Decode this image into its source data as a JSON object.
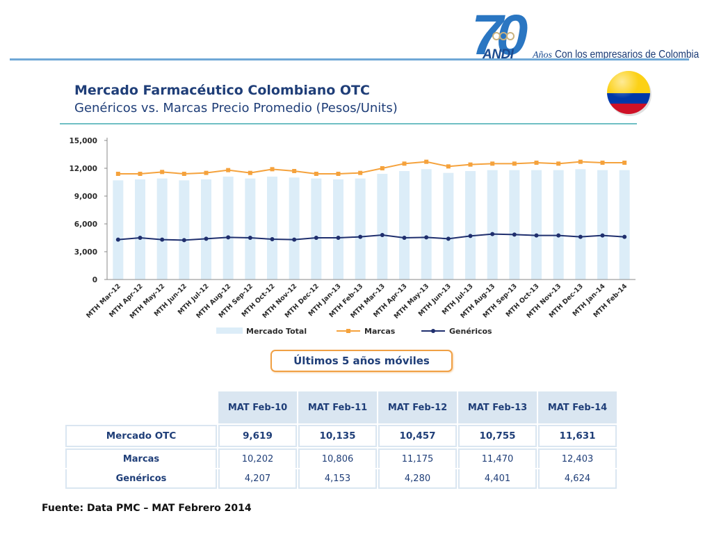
{
  "header": {
    "logo_number": "70",
    "logo_brand": "ANDI",
    "logo_anos": "Años",
    "tagline": "Con los empresarios de Colombia"
  },
  "title": {
    "line1": "Mercado Farmacéutico Colombiano OTC",
    "line2": "Genéricos vs. Marcas Precio Promedio (Pesos/Units)"
  },
  "colors": {
    "brand": "#1a4a8f",
    "title": "#1f3e78",
    "bar": "#dcedf8",
    "marcas": "#f5a23c",
    "genericos": "#1f2f6e",
    "header_cell": "#dae6f1",
    "callout_border": "#f0a045"
  },
  "chart_data": {
    "type": "bar",
    "title": "",
    "xlabel": "",
    "ylabel": "",
    "ylim": [
      0,
      15000
    ],
    "y_ticks": [
      "15,000",
      "12,000",
      "9,000",
      "6,000",
      "3,000",
      "0"
    ],
    "grid": false,
    "legend_position": "bottom",
    "categories": [
      "MTH Mar-12",
      "MTH Apr-12",
      "MTH May-12",
      "MTH Jun-12",
      "MTH Jul-12",
      "MTH Aug-12",
      "MTH Sep-12",
      "MTH Oct-12",
      "MTH Nov-12",
      "MTH Dec-12",
      "MTH Jan-13",
      "MTH Feb-13",
      "MTH Mar-13",
      "MTH Apr-13",
      "MTH May-13",
      "MTH Jun-13",
      "MTH Jul-13",
      "MTH Aug-13",
      "MTH Sep-13",
      "MTH Oct-13",
      "MTH Nov-13",
      "MTH Dec-13",
      "MTH Jan-14",
      "MTH Feb-14"
    ],
    "series": [
      {
        "name": "Mercado Total",
        "kind": "bar",
        "color": "#dcedf8",
        "values": [
          10700,
          10800,
          10900,
          10700,
          10800,
          11100,
          10900,
          11100,
          11000,
          10900,
          10800,
          10900,
          11400,
          11700,
          11900,
          11500,
          11700,
          11800,
          11800,
          11800,
          11800,
          11900,
          11800,
          11800
        ]
      },
      {
        "name": "Marcas",
        "kind": "line",
        "color": "#f5a23c",
        "marker": "square",
        "values": [
          11400,
          11400,
          11600,
          11400,
          11500,
          11800,
          11500,
          11900,
          11700,
          11400,
          11400,
          11500,
          12000,
          12500,
          12700,
          12200,
          12400,
          12500,
          12500,
          12600,
          12500,
          12700,
          12600,
          12600
        ]
      },
      {
        "name": "Genéricos",
        "kind": "line",
        "color": "#1f2f6e",
        "marker": "circle",
        "values": [
          4300,
          4500,
          4300,
          4250,
          4400,
          4550,
          4500,
          4350,
          4300,
          4500,
          4500,
          4600,
          4800,
          4500,
          4550,
          4400,
          4700,
          4900,
          4850,
          4750,
          4750,
          4600,
          4750,
          4600
        ]
      }
    ]
  },
  "callout": "Últimos 5 años móviles",
  "table": {
    "columns": [
      "MAT Feb-10",
      "MAT Feb-11",
      "MAT Feb-12",
      "MAT Feb-13",
      "MAT Feb-14"
    ],
    "rows": [
      {
        "label": "Mercado OTC",
        "values": [
          "9,619",
          "10,135",
          "10,457",
          "10,755",
          "11,631"
        ]
      },
      {
        "label": "Marcas",
        "values": [
          "10,202",
          "10,806",
          "11,175",
          "11,470",
          "12,403"
        ]
      },
      {
        "label": "Genéricos",
        "values": [
          "4,207",
          "4,153",
          "4,280",
          "4,401",
          "4,624"
        ]
      }
    ]
  },
  "source": "Fuente: Data PMC – MAT Febrero 2014"
}
